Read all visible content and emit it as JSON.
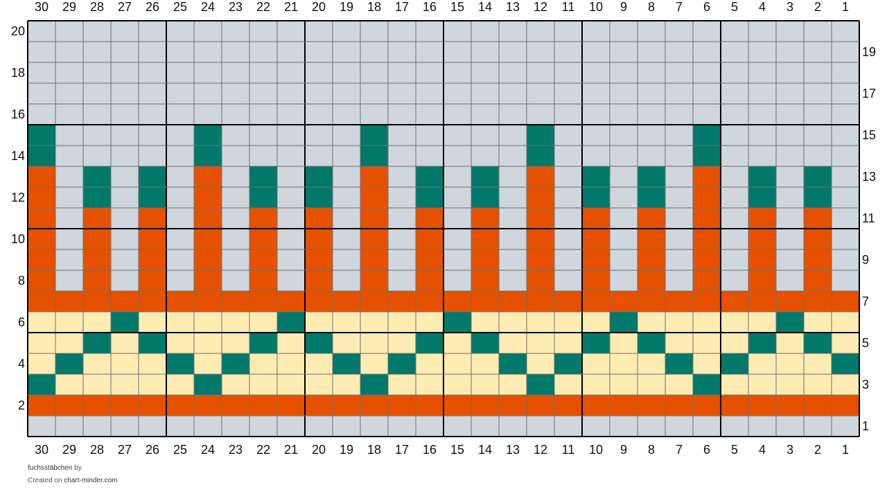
{
  "pattern_name": "fuchsstäbchen",
  "credit": {
    "by_text": "by",
    "created_on_text": "Created on",
    "site": "chart-minder.com"
  },
  "colors": {
    "G": "#cfd6dd",
    "O": "#e65100",
    "T": "#00796b",
    "Y": "#ffecb3",
    "grid": "#6e6e6e",
    "major_grid": "#000000"
  },
  "chart_data": {
    "type": "heatmap",
    "columns": 30,
    "rows": 20,
    "column_numbering": "right-to-left",
    "row_numbering": "bottom-to-top",
    "major_division": 5,
    "left_row_labels": [
      20,
      18,
      16,
      14,
      12,
      10,
      8,
      6,
      4,
      2
    ],
    "right_row_labels": [
      19,
      17,
      15,
      13,
      11,
      9,
      7,
      5,
      3,
      1
    ],
    "column_labels": [
      30,
      29,
      28,
      27,
      26,
      25,
      24,
      23,
      22,
      21,
      20,
      19,
      18,
      17,
      16,
      15,
      14,
      13,
      12,
      11,
      10,
      9,
      8,
      7,
      6,
      5,
      4,
      3,
      2,
      1
    ],
    "legend": {
      "G": "grey",
      "O": "orange",
      "T": "teal",
      "Y": "cream"
    },
    "grid_rows_top_to_bottom": [
      "GGGGGGGGGGGGGGGGGGGGGGGGGGGGGG",
      "GGGGGGGGGGGGGGGGGGGGGGGGGGGGGG",
      "GGGGGGGGGGGGGGGGGGGGGGGGGGGGGG",
      "GGGGGGGGGGGGGGGGGGGGGGGGGGGGGG",
      "GGGGGGGGGGGGGGGGGGGGGGGGGGGGGG",
      "TGGGGGTGGGGGTGGGGGTGGGGGTGGGGG",
      "TGGGGGTGGGGGTGGGGGTGGGGGTGGGGG",
      "OGTGTGOGTGTGOGTGTGOGTGTGOGTGTG",
      "OGTGTGOGTGTGOGTGTGOGTGTGOGTGTG",
      "OGOGOGOGOGOGOGOGOGOGOGOGOGOGOG",
      "OGOGOGOGOGOGOGOGOGOGOGOGOGOGOG",
      "OGOGOGOGOGOGOGOGOGOGOGOGOGOGOG",
      "OGOGOGOGOGOGOGOGOGOGOGOGOGOGOG",
      "OOOOOOOOOOOOOOOOOOOOOOOOOOOOOO",
      "YYYTYYYYYTYYYYYTYYYYYTYYYYYTYY",
      "YYTYTYYYTYTYYYTYTYYYTYTYYYTYTY",
      "YTYYYTYTYYYTYTYYYTYTYYYTYTYYYT",
      "TYYYYYTYYYYYTYYYYYTYYYYYTYYYYY",
      "OOOOOOOOOOOOOOOOOOOOOOOOOOOOOO",
      "GGGGGGGGGGGGGGGGGGGGGGGGGGGGGG"
    ]
  }
}
